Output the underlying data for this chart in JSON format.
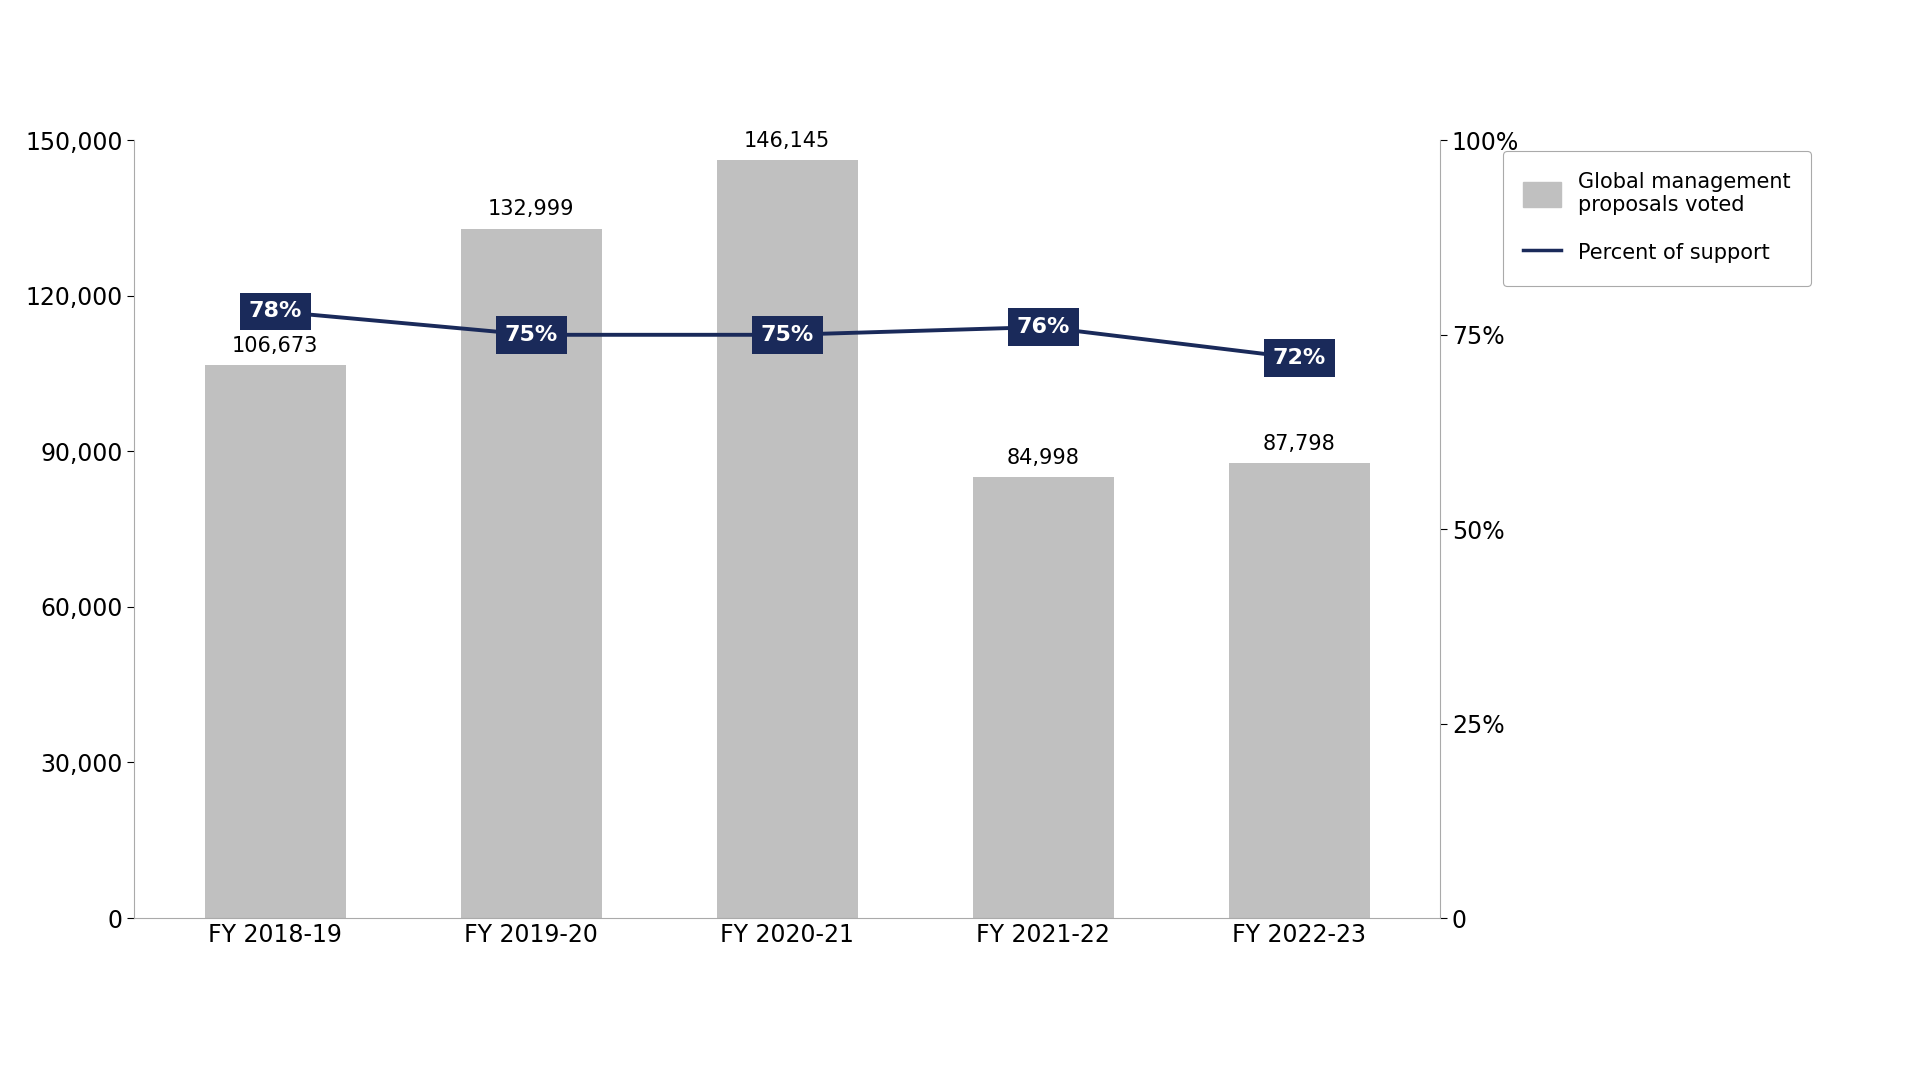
{
  "categories": [
    "FY 2018-19",
    "FY 2019-20",
    "FY 2020-21",
    "FY 2021-22",
    "FY 2022-23"
  ],
  "bar_values": [
    106673,
    132999,
    146145,
    84998,
    87798
  ],
  "bar_labels": [
    "106,673",
    "132,999",
    "146,145",
    "84,998",
    "87,798"
  ],
  "support_pct": [
    0.78,
    0.75,
    0.75,
    0.76,
    0.72
  ],
  "support_labels": [
    "78%",
    "75%",
    "75%",
    "76%",
    "72%"
  ],
  "bar_color": "#c0c0c0",
  "line_color": "#1a2a5a",
  "label_box_color": "#1a2a5a",
  "label_text_color": "#ffffff",
  "bar_label_color": "#000000",
  "ylim_left": [
    0,
    150000
  ],
  "ylim_right": [
    0,
    1.0
  ],
  "yticks_left": [
    0,
    30000,
    60000,
    90000,
    120000,
    150000
  ],
  "ytick_labels_left": [
    "0",
    "30,000",
    "60,000",
    "90,000",
    "120,000",
    "150,000"
  ],
  "yticks_right": [
    0,
    0.25,
    0.5,
    0.75,
    1.0
  ],
  "ytick_labels_right": [
    "0",
    "25%",
    "50%",
    "75%",
    "100%"
  ],
  "legend_bar_label": "Global management\nproposals voted",
  "legend_line_label": "Percent of support",
  "background_color": "#ffffff",
  "figsize": [
    19.2,
    10.8
  ],
  "dpi": 100
}
